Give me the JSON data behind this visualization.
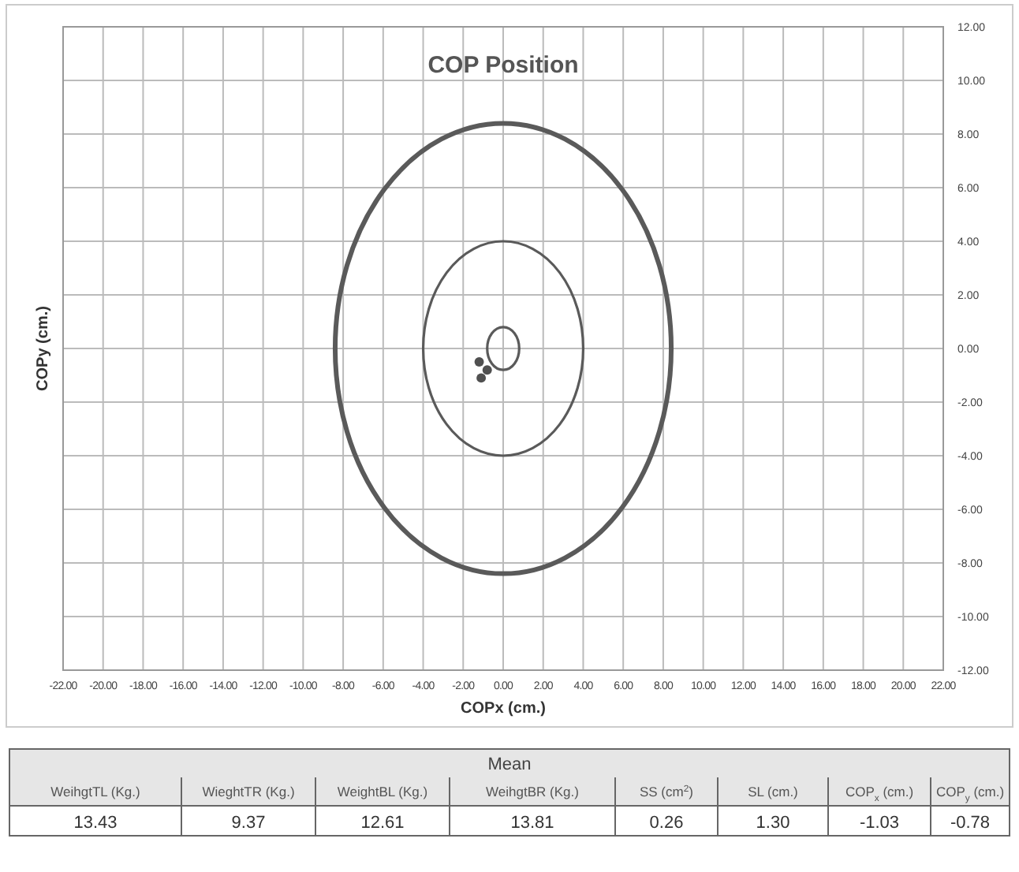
{
  "chart_data": {
    "type": "scatter",
    "title": "COP Position",
    "xlabel": "COPx (cm.)",
    "ylabel": "COPy (cm.)",
    "xlim": [
      -22,
      22
    ],
    "ylim": [
      -12,
      12
    ],
    "xticks": [
      {
        "value": -22,
        "label": "-22.00"
      },
      {
        "value": -20,
        "label": "-20.00"
      },
      {
        "value": -18,
        "label": "-18.00"
      },
      {
        "value": -16,
        "label": "-16.00"
      },
      {
        "value": -14,
        "label": "-14.00"
      },
      {
        "value": -12,
        "label": "-12.00"
      },
      {
        "value": -10,
        "label": "-10.00"
      },
      {
        "value": -8,
        "label": "-8.00"
      },
      {
        "value": -6,
        "label": "-6.00"
      },
      {
        "value": -4,
        "label": "-4.00"
      },
      {
        "value": -2,
        "label": "-2.00"
      },
      {
        "value": 0,
        "label": "0.00"
      },
      {
        "value": 2,
        "label": "2.00"
      },
      {
        "value": 4,
        "label": "4.00"
      },
      {
        "value": 6,
        "label": "6.00"
      },
      {
        "value": 8,
        "label": "8.00"
      },
      {
        "value": 10,
        "label": "10.00"
      },
      {
        "value": 12,
        "label": "12.00"
      },
      {
        "value": 14,
        "label": "14.00"
      },
      {
        "value": 16,
        "label": "16.00"
      },
      {
        "value": 18,
        "label": "18.00"
      },
      {
        "value": 20,
        "label": "20.00"
      },
      {
        "value": 22,
        "label": "22.00"
      }
    ],
    "yticks": [
      {
        "value": -12,
        "label": "-12.00"
      },
      {
        "value": -10,
        "label": "-10.00"
      },
      {
        "value": -8,
        "label": "-8.00"
      },
      {
        "value": -6,
        "label": "-6.00"
      },
      {
        "value": -4,
        "label": "-4.00"
      },
      {
        "value": -2,
        "label": "-2.00"
      },
      {
        "value": 0,
        "label": "0.00"
      },
      {
        "value": 2,
        "label": "2.00"
      },
      {
        "value": 4,
        "label": "4.00"
      },
      {
        "value": 6,
        "label": "6.00"
      },
      {
        "value": 8,
        "label": "8.00"
      },
      {
        "value": 10,
        "label": "10.00"
      },
      {
        "value": 12,
        "label": "12.00"
      }
    ],
    "grid": true,
    "series": [
      {
        "type": "scatter",
        "color": "#505050",
        "marker": "circle",
        "x": [
          -1.2,
          -0.8,
          -1.1
        ],
        "values": [
          -0.5,
          -0.8,
          -1.1
        ]
      }
    ],
    "annotations": [
      "Mean",
      "WeihgtTL (Kg.)",
      "WieghtTR (Kg.)",
      "WeightBL (Kg.)",
      "WeihgtBR (Kg.)",
      "SS (cm$^{2}$)",
      "SL (cm.)",
      "COP$_{x}$ (cm.)",
      "COP$_{y}$ (cm.)",
      "13.43",
      "9.37",
      "12.61",
      "13.81",
      "0.26",
      "1.30",
      "-1.03",
      "-0.78"
    ]
  }
}
